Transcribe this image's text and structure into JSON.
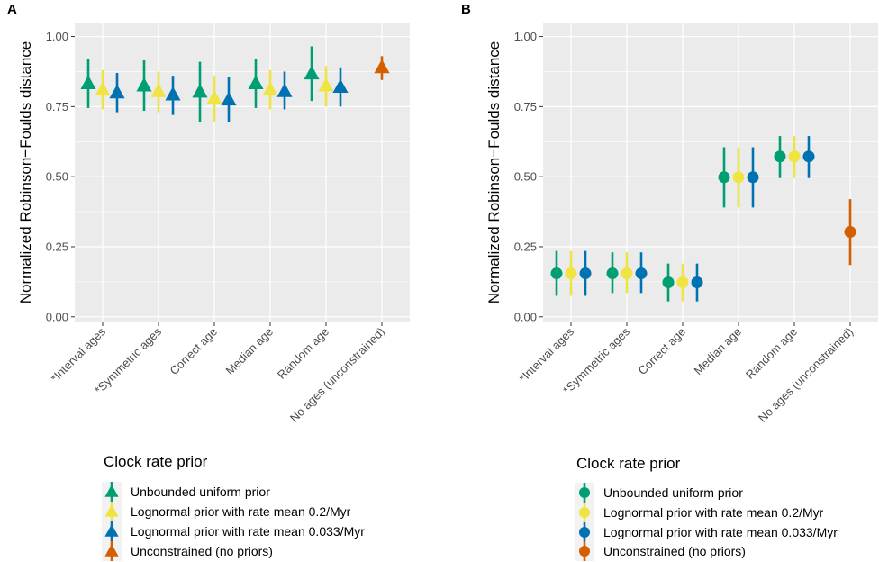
{
  "chart_data": [
    {
      "type": "scatter",
      "panel_label": "A",
      "marker": "triangle",
      "title": "",
      "xlabel": "",
      "ylabel": "Normalized Robinson−Foulds distance",
      "ylim": [
        -0.02,
        1.05
      ],
      "yticks": [
        "0.00",
        "0.25",
        "0.50",
        "0.75",
        "1.00"
      ],
      "ytick_values": [
        0,
        0.25,
        0.5,
        0.75,
        1.0
      ],
      "grid": true,
      "categories": [
        "*Interval ages",
        "*Symmetric ages",
        "Correct age",
        "Median age",
        "Random age",
        "No ages (unconstrained)"
      ],
      "series": [
        {
          "name": "Unbounded uniform prior",
          "color": "#009E73",
          "points": [
            {
              "category": 0,
              "y": 0.833,
              "low": 0.745,
              "high": 0.92
            },
            {
              "category": 1,
              "y": 0.825,
              "low": 0.735,
              "high": 0.915
            },
            {
              "category": 2,
              "y": 0.803,
              "low": 0.695,
              "high": 0.91
            },
            {
              "category": 3,
              "y": 0.833,
              "low": 0.745,
              "high": 0.92
            },
            {
              "category": 4,
              "y": 0.868,
              "low": 0.77,
              "high": 0.965
            }
          ]
        },
        {
          "name": "Lognormal prior with rate mean 0.2/Myr",
          "color": "#F0E442",
          "points": [
            {
              "category": 0,
              "y": 0.81,
              "low": 0.74,
              "high": 0.88
            },
            {
              "category": 1,
              "y": 0.805,
              "low": 0.73,
              "high": 0.875
            },
            {
              "category": 2,
              "y": 0.78,
              "low": 0.695,
              "high": 0.86
            },
            {
              "category": 3,
              "y": 0.81,
              "low": 0.74,
              "high": 0.88
            },
            {
              "category": 4,
              "y": 0.825,
              "low": 0.75,
              "high": 0.895
            }
          ]
        },
        {
          "name": "Lognormal prior with rate mean 0.033/Myr",
          "color": "#0072B2",
          "points": [
            {
              "category": 0,
              "y": 0.8,
              "low": 0.73,
              "high": 0.87
            },
            {
              "category": 1,
              "y": 0.793,
              "low": 0.72,
              "high": 0.86
            },
            {
              "category": 2,
              "y": 0.775,
              "low": 0.695,
              "high": 0.855
            },
            {
              "category": 3,
              "y": 0.805,
              "low": 0.74,
              "high": 0.875
            },
            {
              "category": 4,
              "y": 0.82,
              "low": 0.75,
              "high": 0.89
            }
          ]
        },
        {
          "name": "Unconstrained (no priors)",
          "color": "#D55E00",
          "points": [
            {
              "category": 5,
              "y": 0.89,
              "low": 0.845,
              "high": 0.93
            }
          ]
        }
      ],
      "legend": {
        "title": "Clock rate prior",
        "position": "bottom-left"
      }
    },
    {
      "type": "scatter",
      "panel_label": "B",
      "marker": "circle",
      "title": "",
      "xlabel": "",
      "ylabel": "Normalized Robinson−Foulds distance",
      "ylim": [
        -0.02,
        1.05
      ],
      "yticks": [
        "0.00",
        "0.25",
        "0.50",
        "0.75",
        "1.00"
      ],
      "ytick_values": [
        0,
        0.25,
        0.5,
        0.75,
        1.0
      ],
      "grid": true,
      "categories": [
        "*Interval ages",
        "*Symmetric ages",
        "Correct age",
        "Median age",
        "Random age",
        "No ages (unconstrained)"
      ],
      "series": [
        {
          "name": "Unbounded uniform prior",
          "color": "#009E73",
          "points": [
            {
              "category": 0,
              "y": 0.155,
              "low": 0.075,
              "high": 0.235
            },
            {
              "category": 1,
              "y": 0.155,
              "low": 0.085,
              "high": 0.23
            },
            {
              "category": 2,
              "y": 0.123,
              "low": 0.055,
              "high": 0.19
            },
            {
              "category": 3,
              "y": 0.498,
              "low": 0.39,
              "high": 0.605
            },
            {
              "category": 4,
              "y": 0.572,
              "low": 0.495,
              "high": 0.645
            }
          ]
        },
        {
          "name": "Lognormal prior with rate mean 0.2/Myr",
          "color": "#F0E442",
          "points": [
            {
              "category": 0,
              "y": 0.155,
              "low": 0.075,
              "high": 0.235
            },
            {
              "category": 1,
              "y": 0.155,
              "low": 0.085,
              "high": 0.23
            },
            {
              "category": 2,
              "y": 0.123,
              "low": 0.055,
              "high": 0.19
            },
            {
              "category": 3,
              "y": 0.498,
              "low": 0.39,
              "high": 0.605
            },
            {
              "category": 4,
              "y": 0.572,
              "low": 0.495,
              "high": 0.645
            }
          ]
        },
        {
          "name": "Lognormal prior with rate mean 0.033/Myr",
          "color": "#0072B2",
          "points": [
            {
              "category": 0,
              "y": 0.155,
              "low": 0.075,
              "high": 0.235
            },
            {
              "category": 1,
              "y": 0.155,
              "low": 0.085,
              "high": 0.23
            },
            {
              "category": 2,
              "y": 0.123,
              "low": 0.055,
              "high": 0.19
            },
            {
              "category": 3,
              "y": 0.498,
              "low": 0.39,
              "high": 0.605
            },
            {
              "category": 4,
              "y": 0.572,
              "low": 0.495,
              "high": 0.645
            }
          ]
        },
        {
          "name": "Unconstrained (no priors)",
          "color": "#D55E00",
          "points": [
            {
              "category": 5,
              "y": 0.303,
              "low": 0.185,
              "high": 0.42
            }
          ]
        }
      ],
      "legend": {
        "title": "Clock rate prior",
        "position": "bottom-left"
      }
    }
  ]
}
